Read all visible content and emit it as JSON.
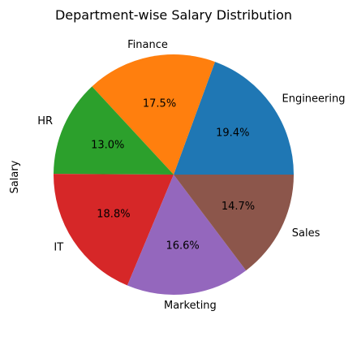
{
  "chart_data": {
    "type": "pie",
    "title": "Department-wise Salary Distribution",
    "ylabel": "Salary",
    "categories": [
      "Engineering",
      "Finance",
      "HR",
      "IT",
      "Marketing",
      "Sales"
    ],
    "values": [
      19.4,
      17.5,
      13.0,
      18.8,
      16.6,
      14.7
    ],
    "value_labels": [
      "19.4%",
      "17.5%",
      "13.0%",
      "18.8%",
      "16.6%",
      "14.7%"
    ],
    "colors": [
      "#1f77b4",
      "#ff7f0e",
      "#2ca02c",
      "#d62728",
      "#9467bd",
      "#8c564b"
    ],
    "start_angle_deg": 0,
    "direction": "counterclockwise",
    "legend": "none"
  }
}
